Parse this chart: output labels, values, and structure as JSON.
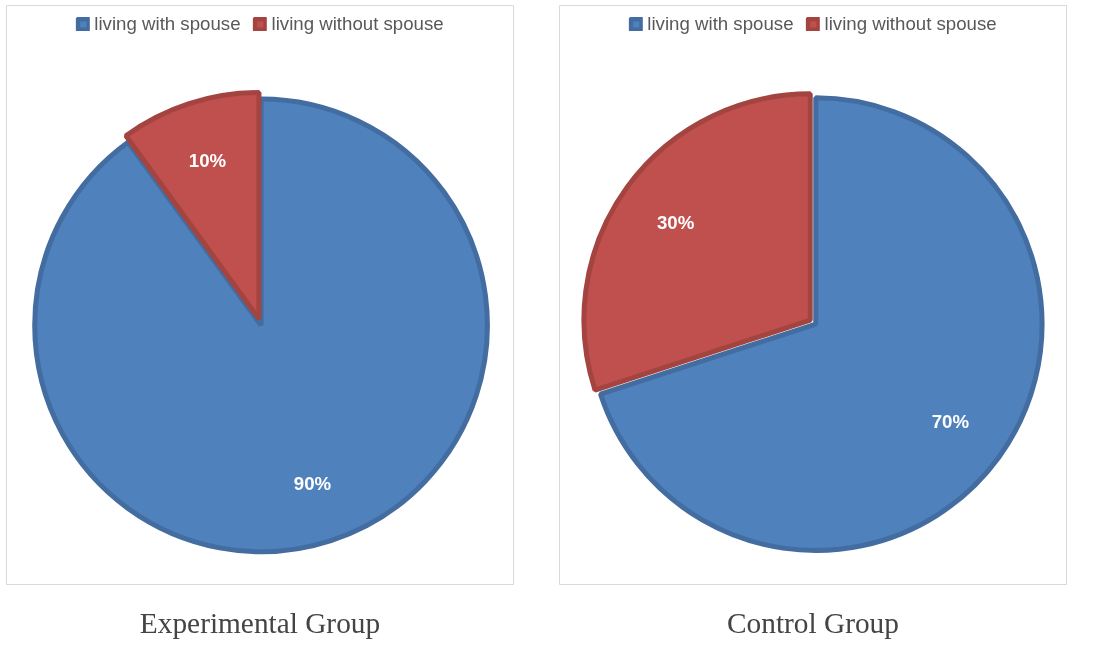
{
  "chart_data": [
    {
      "type": "pie",
      "title": "Experimental Group",
      "categories": [
        "living with spouse",
        "living without spouse"
      ],
      "values": [
        90,
        10
      ],
      "value_labels": [
        "90%",
        "10%"
      ],
      "colors": [
        "#4f81bd",
        "#c0504d"
      ],
      "legend": "top"
    },
    {
      "type": "pie",
      "title": "Control Group",
      "categories": [
        "living with spouse",
        "living without spouse"
      ],
      "values": [
        70,
        30
      ],
      "value_labels": [
        "70%",
        "30%"
      ],
      "colors": [
        "#4f81bd",
        "#c0504d"
      ],
      "legend": "top"
    }
  ]
}
